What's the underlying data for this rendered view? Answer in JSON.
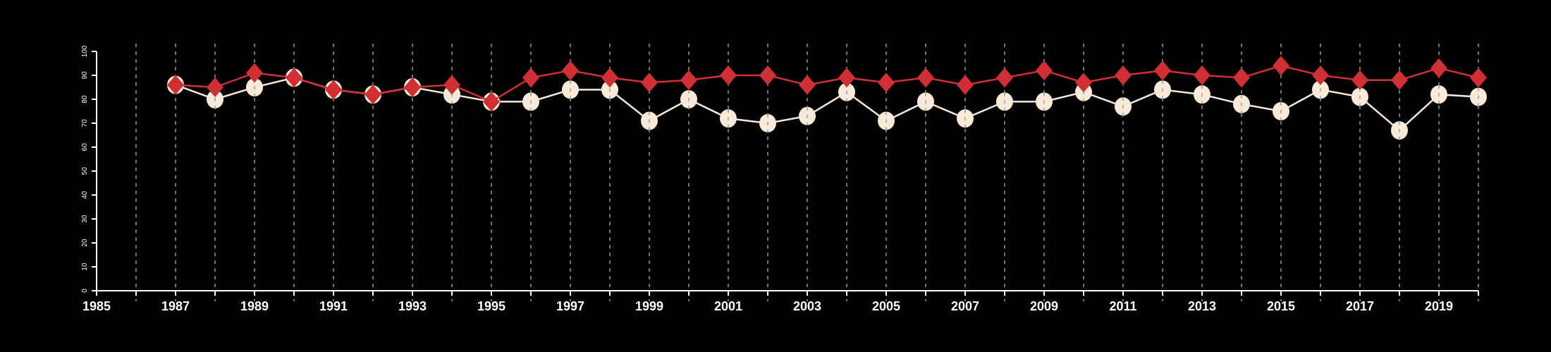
{
  "chart_data": {
    "type": "line",
    "title": "",
    "xlabel": "",
    "ylabel": "",
    "xlim": [
      1985,
      2020
    ],
    "ylim": [
      0,
      100
    ],
    "yticks": [
      0,
      10,
      20,
      30,
      40,
      50,
      60,
      70,
      80,
      90,
      100
    ],
    "xtick_labels": [
      "1985",
      "1987",
      "1989",
      "1991",
      "1993",
      "1995",
      "1997",
      "1999",
      "2001",
      "2003",
      "2005",
      "2007",
      "2009",
      "2011",
      "2013",
      "2015",
      "2017",
      "2019"
    ],
    "grid": "vertical dashed lines at every year",
    "legend": "none",
    "x": [
      1987,
      1988,
      1989,
      1990,
      1991,
      1992,
      1993,
      1994,
      1995,
      1996,
      1997,
      1998,
      1999,
      2000,
      2001,
      2002,
      2003,
      2004,
      2005,
      2006,
      2007,
      2008,
      2009,
      2010,
      2011,
      2012,
      2013,
      2014,
      2015,
      2016,
      2017,
      2018,
      2019,
      2020
    ],
    "series": [
      {
        "name": "series-white-circles",
        "color": "#f8ead8",
        "marker": "circle",
        "values": [
          86,
          80,
          85,
          89,
          84,
          82,
          85,
          82,
          79,
          79,
          84,
          84,
          71,
          80,
          72,
          70,
          73,
          83,
          71,
          79,
          72,
          79,
          79,
          83,
          77,
          84,
          82,
          78,
          75,
          84,
          81,
          67,
          82,
          81
        ]
      },
      {
        "name": "series-red-diamonds",
        "color": "#d03035",
        "marker": "diamond",
        "values": [
          86,
          85,
          91,
          89,
          84,
          82,
          85,
          86,
          79,
          89,
          92,
          89,
          87,
          88,
          90,
          90,
          86,
          89,
          87,
          89,
          86,
          89,
          92,
          87,
          90,
          92,
          90,
          89,
          94,
          90,
          88,
          88,
          93,
          89
        ]
      }
    ]
  }
}
